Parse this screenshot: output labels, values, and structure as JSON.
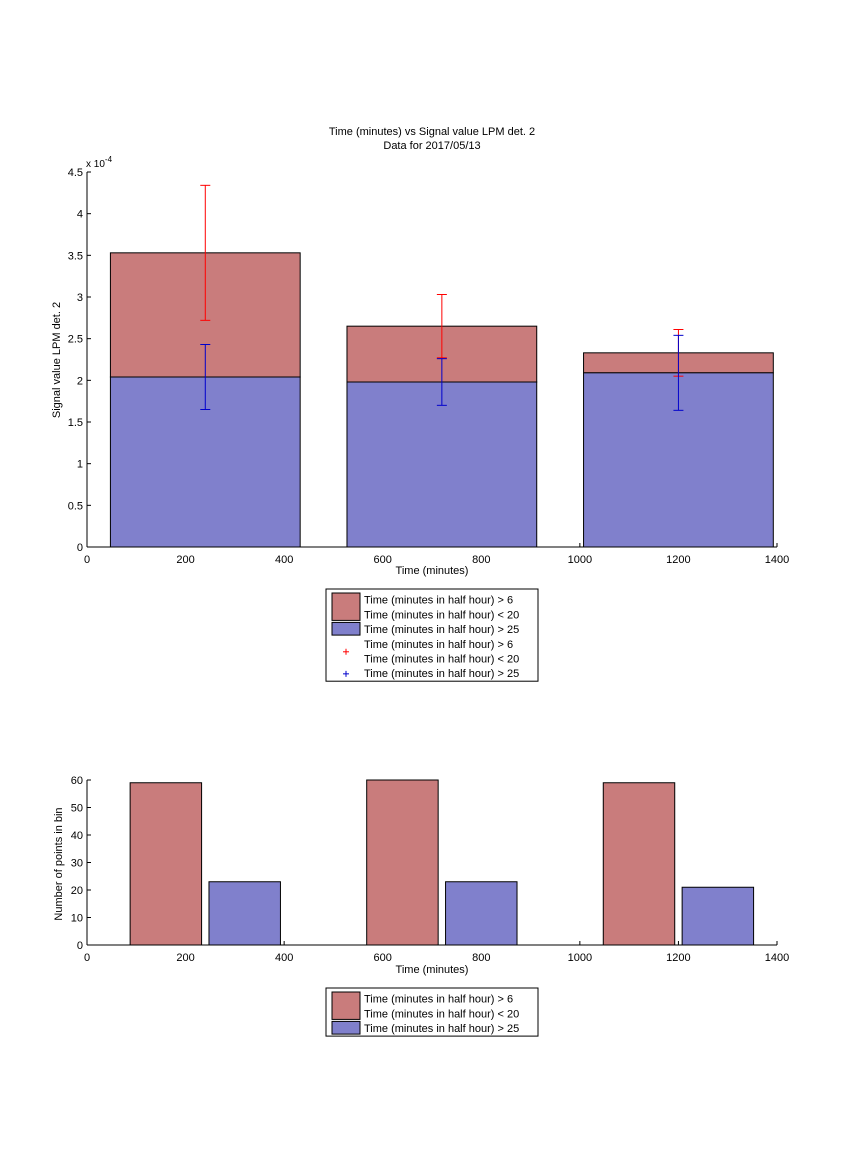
{
  "colors": {
    "red_fill": "#c97c7c",
    "blue_fill": "#8080cc",
    "red_err": "#ff0000",
    "blue_err": "#0000cc",
    "axis": "#000000"
  },
  "chart_data": [
    {
      "type": "bar",
      "title": "Time (minutes) vs Signal value LPM det. 2",
      "subtitle": "Data for 2017/05/13",
      "xlabel": "Time (minutes)",
      "ylabel": "Signal value LPM det. 2",
      "y_multiplier": "x 10",
      "y_exponent": "-4",
      "xlim": [
        0,
        1400
      ],
      "ylim": [
        0,
        4.5
      ],
      "xticks": [
        "0",
        "200",
        "400",
        "600",
        "800",
        "1000",
        "1200",
        "1400"
      ],
      "yticks": [
        "0",
        "0.5",
        "1",
        "1.5",
        "2",
        "2.5",
        "3",
        "3.5",
        "4",
        "4.5"
      ],
      "bin_centers": [
        240,
        720,
        1200
      ],
      "bin_width": 385,
      "series": [
        {
          "name": "Time (minutes in half hour) > 6\nTime (minutes in half hour) < 20",
          "values": [
            3.53,
            2.65,
            2.33
          ],
          "errors": [
            0.81,
            0.38,
            0.28
          ]
        },
        {
          "name": "Time (minutes in half hour) > 25",
          "values": [
            2.04,
            1.98,
            2.09
          ],
          "errors": [
            0.39,
            0.28,
            0.45
          ]
        }
      ],
      "legend": {
        "position": "below",
        "entries": [
          {
            "kind": "patch",
            "lines": [
              "Time (minutes in half hour) > 6",
              "Time (minutes in half hour) < 20"
            ]
          },
          {
            "kind": "patch",
            "lines": [
              "Time (minutes in half hour) > 25"
            ]
          },
          {
            "kind": "marker",
            "lines": [
              "Time (minutes in half hour) > 6",
              "Time (minutes in half hour) < 20"
            ]
          },
          {
            "kind": "marker",
            "lines": [
              "Time (minutes in half hour) > 25"
            ]
          }
        ]
      }
    },
    {
      "type": "bar",
      "xlabel": "Time (minutes)",
      "ylabel": "Number of points in bin",
      "xlim": [
        0,
        1400
      ],
      "ylim": [
        0,
        60
      ],
      "xticks": [
        "0",
        "200",
        "400",
        "600",
        "800",
        "1000",
        "1200",
        "1400"
      ],
      "yticks": [
        "0",
        "10",
        "20",
        "30",
        "40",
        "50",
        "60"
      ],
      "bar_width": 145,
      "series": [
        {
          "name": "Time (minutes in half hour) > 6\nTime (minutes in half hour) < 20",
          "x": [
            160,
            640,
            1120
          ],
          "values": [
            59,
            60,
            59
          ]
        },
        {
          "name": "Time (minutes in half hour) > 25",
          "x": [
            320,
            800,
            1280
          ],
          "values": [
            23,
            23,
            21
          ]
        }
      ],
      "legend": {
        "position": "below",
        "entries": [
          {
            "kind": "patch",
            "lines": [
              "Time (minutes in half hour) > 6",
              "Time (minutes in half hour) < 20"
            ]
          },
          {
            "kind": "patch",
            "lines": [
              "Time (minutes in half hour) > 25"
            ]
          }
        ]
      }
    }
  ]
}
